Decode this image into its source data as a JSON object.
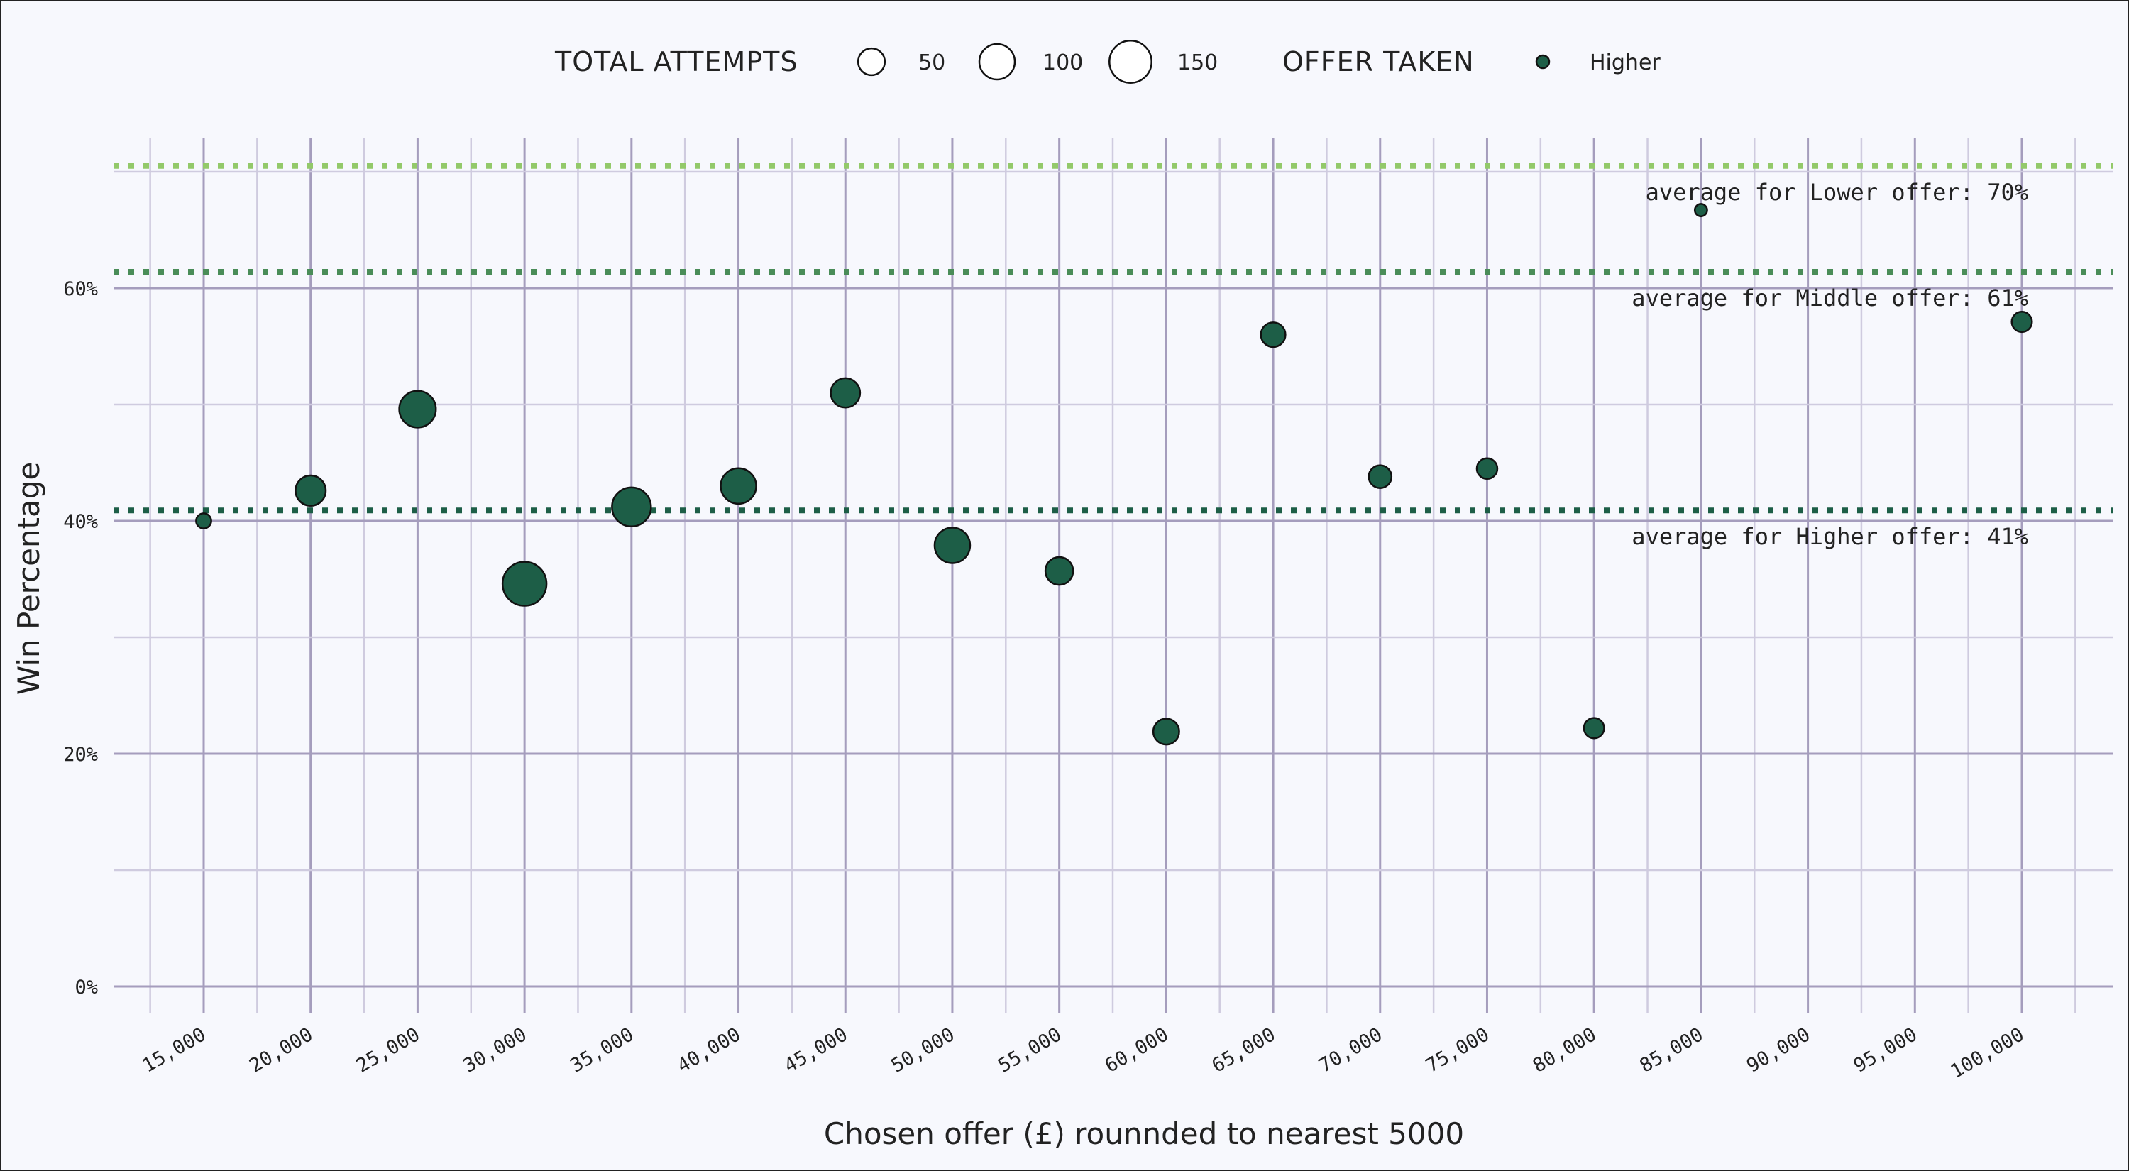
{
  "chart_data": {
    "type": "scatter",
    "xlabel": "Chosen offer (£) rounnded to nearest 5000",
    "ylabel": "Win Percentage",
    "xlim": [
      10000,
      102500
    ],
    "ylim": [
      -2.5,
      72.5
    ],
    "x_ticks": [
      15000,
      20000,
      25000,
      30000,
      35000,
      40000,
      45000,
      50000,
      55000,
      60000,
      65000,
      70000,
      75000,
      80000,
      85000,
      90000,
      95000,
      100000
    ],
    "x_tick_labels": [
      "15,000",
      "20,000",
      "25,000",
      "30,000",
      "35,000",
      "40,000",
      "45,000",
      "50,000",
      "55,000",
      "60,000",
      "65,000",
      "70,000",
      "75,000",
      "80,000",
      "85,000",
      "90,000",
      "95,000",
      "100,000"
    ],
    "y_ticks": [
      0,
      20,
      40,
      60
    ],
    "y_tick_labels": [
      "0%",
      "20%",
      "40%",
      "60%"
    ],
    "grid": true,
    "legend": {
      "placement": "top",
      "size_title": "TOTAL ATTEMPTS",
      "size_entries": [
        {
          "label": "50",
          "value": 50
        },
        {
          "label": "100",
          "value": 100
        },
        {
          "label": "150",
          "value": 150
        }
      ],
      "color_title": "OFFER TAKEN",
      "color_entries": [
        {
          "label": "Higher",
          "color": "#1d5e47"
        }
      ]
    },
    "series": [
      {
        "name": "Higher",
        "color": "#1d5e47",
        "points": [
          {
            "x": 15000,
            "y": 40.0,
            "attempts": 10
          },
          {
            "x": 20000,
            "y": 42.6,
            "attempts": 68
          },
          {
            "x": 25000,
            "y": 49.6,
            "attempts": 108
          },
          {
            "x": 30000,
            "y": 34.6,
            "attempts": 165
          },
          {
            "x": 35000,
            "y": 41.2,
            "attempts": 125
          },
          {
            "x": 40000,
            "y": 43.0,
            "attempts": 100
          },
          {
            "x": 45000,
            "y": 51.0,
            "attempts": 63
          },
          {
            "x": 50000,
            "y": 37.9,
            "attempts": 100
          },
          {
            "x": 55000,
            "y": 35.7,
            "attempts": 55
          },
          {
            "x": 60000,
            "y": 21.9,
            "attempts": 46
          },
          {
            "x": 65000,
            "y": 56.0,
            "attempts": 40
          },
          {
            "x": 70000,
            "y": 43.8,
            "attempts": 33
          },
          {
            "x": 75000,
            "y": 44.5,
            "attempts": 25
          },
          {
            "x": 80000,
            "y": 22.2,
            "attempts": 24
          },
          {
            "x": 85000,
            "y": 66.7,
            "attempts": 5
          },
          {
            "x": 100000,
            "y": 57.1,
            "attempts": 24
          }
        ]
      }
    ],
    "reference_lines": [
      {
        "label": "average for Lower offer: 70%",
        "y": 70.5,
        "color": "#93c96a"
      },
      {
        "label": "average for Middle offer: 61%",
        "y": 61.4,
        "color": "#4a8d58"
      },
      {
        "label": "average for Higher offer: 41%",
        "y": 40.9,
        "color": "#1d5e47"
      }
    ],
    "colors": {
      "background": "#f7f8fd",
      "grid_major": "#a59dbd",
      "grid_minor": "#cfcbdf",
      "point_stroke": "#111111"
    }
  }
}
